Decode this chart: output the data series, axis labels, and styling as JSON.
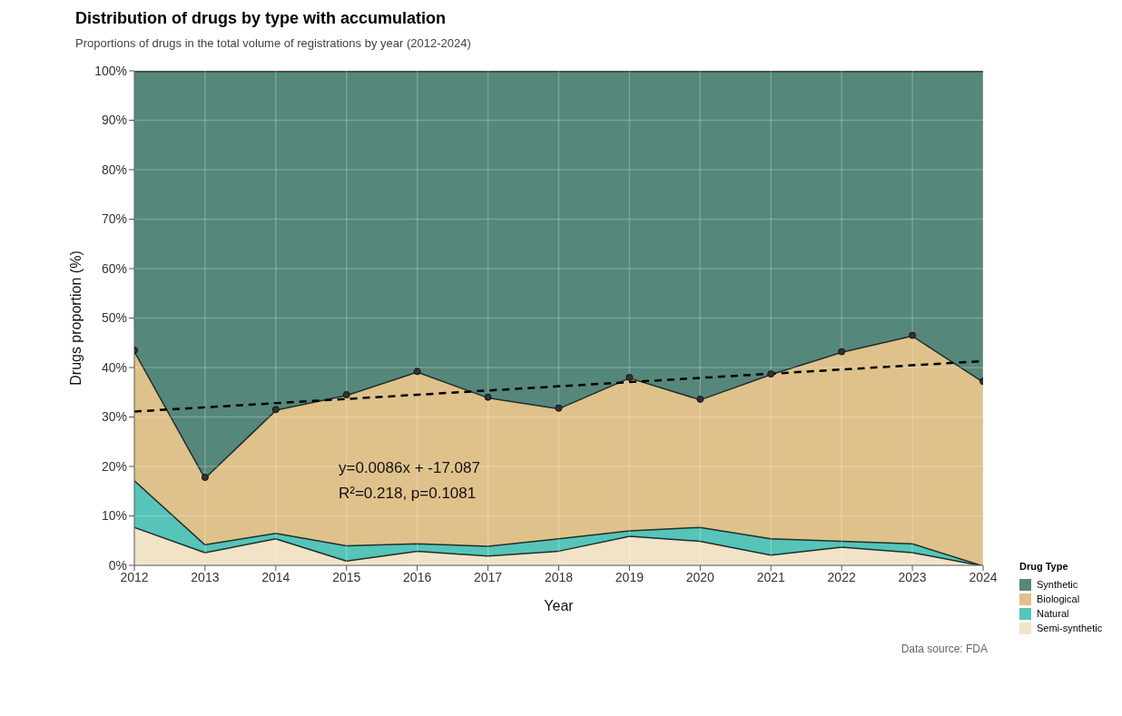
{
  "chart_data": {
    "type": "area",
    "stacked": true,
    "title": "Distribution of drugs by type with accumulation",
    "subtitle": "Proportions of drugs in the total volume of registrations by year (2012-2024)",
    "xlabel": "Year",
    "ylabel": "Drugs proportion (%)",
    "legend_title": "Drug Type",
    "legend": "right",
    "grid": true,
    "x": [
      2012,
      2013,
      2014,
      2015,
      2016,
      2017,
      2018,
      2019,
      2020,
      2021,
      2022,
      2023,
      2024
    ],
    "xlim": [
      2012,
      2024
    ],
    "xticks": [
      2012,
      2013,
      2014,
      2015,
      2016,
      2017,
      2018,
      2019,
      2020,
      2021,
      2022,
      2023,
      2024
    ],
    "ylim": [
      0,
      100
    ],
    "yticks": [
      {
        "value": 0,
        "label": "0%"
      },
      {
        "value": 10,
        "label": "10%"
      },
      {
        "value": 20,
        "label": "20%"
      },
      {
        "value": 30,
        "label": "30%"
      },
      {
        "value": 40,
        "label": "40%"
      },
      {
        "value": 50,
        "label": "50%"
      },
      {
        "value": 60,
        "label": "60%"
      },
      {
        "value": 70,
        "label": "70%"
      },
      {
        "value": 80,
        "label": "80%"
      },
      {
        "value": 90,
        "label": "90%"
      },
      {
        "value": 100,
        "label": "100%"
      }
    ],
    "series": [
      {
        "name": "Semi-synthetic",
        "color": "#f1e3c7",
        "values": [
          7.8,
          2.7,
          5.5,
          1.0,
          3.0,
          2.0,
          3.0,
          6.0,
          5.0,
          2.2,
          3.8,
          2.7,
          0
        ]
      },
      {
        "name": "Natural",
        "color": "#56c4b9",
        "values": [
          9.5,
          1.6,
          1.1,
          3.1,
          1.5,
          2.0,
          2.5,
          1.1,
          2.8,
          3.3,
          1.2,
          1.8,
          0
        ]
      },
      {
        "name": "Biological",
        "color": "#dfc18b",
        "marker": "circle",
        "values": [
          26.2,
          13.5,
          24.9,
          30.4,
          34.7,
          30.0,
          26.3,
          30.9,
          25.8,
          33.2,
          38.2,
          42.0,
          37.2
        ]
      },
      {
        "name": "Synthetic",
        "color": "#56877b",
        "values": [
          56.5,
          82.2,
          68.5,
          65.5,
          60.8,
          66.0,
          68.2,
          62.0,
          66.4,
          61.3,
          56.8,
          53.5,
          62.8
        ]
      },
      {
        "type": "line",
        "color": "#000000",
        "line_style": "dashed",
        "x": [
          2012,
          2024
        ],
        "values": [
          31.1,
          41.3
        ]
      }
    ],
    "annotations": [
      "y=0.0086x + -17.087",
      "R²=0.218, p=0.1081",
      "Data source: FDA"
    ]
  }
}
